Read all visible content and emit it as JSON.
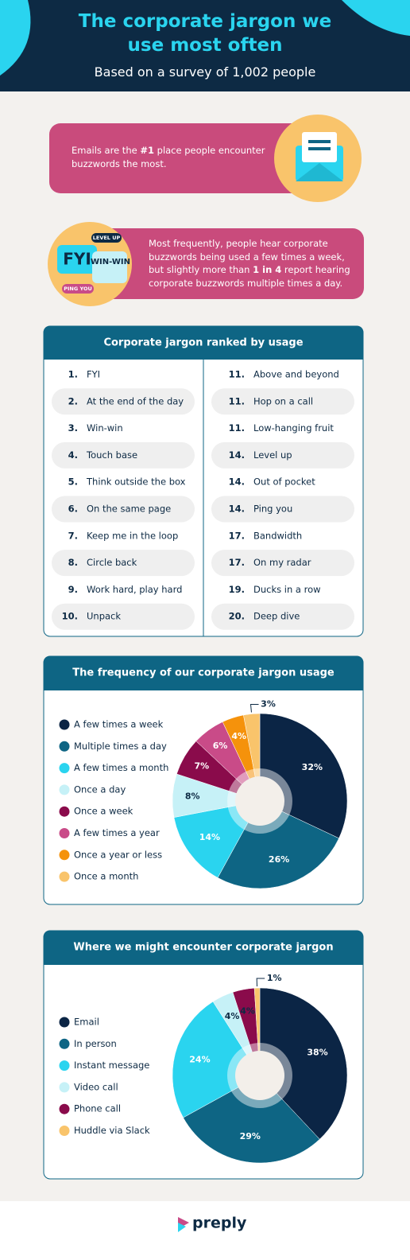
{
  "header": {
    "title": "The corporate jargon we use most often",
    "subtitle": "Based on a survey of 1,002 people"
  },
  "callouts": [
    {
      "segments": [
        "Emails are the ",
        "#1",
        " place people encounter buzzwords the most."
      ]
    },
    {
      "segments": [
        "Most frequently, people hear corporate buzzwords being used a few times a week, but slightly more than ",
        "1 in 4",
        " report hearing corporate buzzwords multiple times a day."
      ],
      "icon_labels": [
        "FYI",
        "WIN-WIN",
        "LEVEL UP",
        "PING YOU"
      ]
    }
  ],
  "ranking": {
    "title": "Corporate jargon ranked by usage",
    "left": [
      {
        "rank": "1.",
        "item": "FYI"
      },
      {
        "rank": "2.",
        "item": "At the end of the day"
      },
      {
        "rank": "3.",
        "item": "Win-win"
      },
      {
        "rank": "4.",
        "item": "Touch base"
      },
      {
        "rank": "5.",
        "item": "Think outside the box"
      },
      {
        "rank": "6.",
        "item": "On the same page"
      },
      {
        "rank": "7.",
        "item": "Keep me in the loop"
      },
      {
        "rank": "8.",
        "item": "Circle back"
      },
      {
        "rank": "9.",
        "item": "Work hard, play hard"
      },
      {
        "rank": "10.",
        "item": "Unpack"
      }
    ],
    "right": [
      {
        "rank": "11.",
        "item": "Above and beyond"
      },
      {
        "rank": "11.",
        "item": "Hop on a call"
      },
      {
        "rank": "11.",
        "item": "Low-hanging fruit"
      },
      {
        "rank": "14.",
        "item": "Level up"
      },
      {
        "rank": "14.",
        "item": "Out of pocket"
      },
      {
        "rank": "14.",
        "item": "Ping you"
      },
      {
        "rank": "17.",
        "item": "Bandwidth"
      },
      {
        "rank": "17.",
        "item": "On my radar"
      },
      {
        "rank": "19.",
        "item": "Ducks in a row"
      },
      {
        "rank": "20.",
        "item": "Deep dive"
      }
    ]
  },
  "chart_data": [
    {
      "type": "pie",
      "title": "The frequency of our corporate jargon usage",
      "categories": [
        "A few times a week",
        "Multiple times a day",
        "A few times a month",
        "Once a day",
        "Once a week",
        "A few times a year",
        "Once a year or less",
        "Once a month"
      ],
      "values": [
        32,
        26,
        14,
        8,
        7,
        6,
        4,
        3
      ],
      "value_labels": [
        "32%",
        "26%",
        "14%",
        "8%",
        "7%",
        "6%",
        "4%",
        "3%"
      ],
      "colors": [
        "#0b2545",
        "#0e6584",
        "#2ad4ef",
        "#c6f1f7",
        "#8a0b4b",
        "#c94b88",
        "#f5920b",
        "#f9c46b"
      ]
    },
    {
      "type": "pie",
      "title": "Where we might encounter corporate jargon",
      "categories": [
        "Email",
        "In person",
        "Instant message",
        "Video call",
        "Phone call",
        "Huddle via Slack"
      ],
      "values": [
        38,
        29,
        24,
        4,
        4,
        1
      ],
      "value_labels": [
        "38%",
        "29%",
        "24%",
        "4%",
        "4%",
        "1%"
      ],
      "colors": [
        "#0b2545",
        "#0e6584",
        "#2ad4ef",
        "#c6f1f7",
        "#8a0b4b",
        "#f9c46b"
      ]
    }
  ],
  "footer": {
    "logo": "preply"
  }
}
